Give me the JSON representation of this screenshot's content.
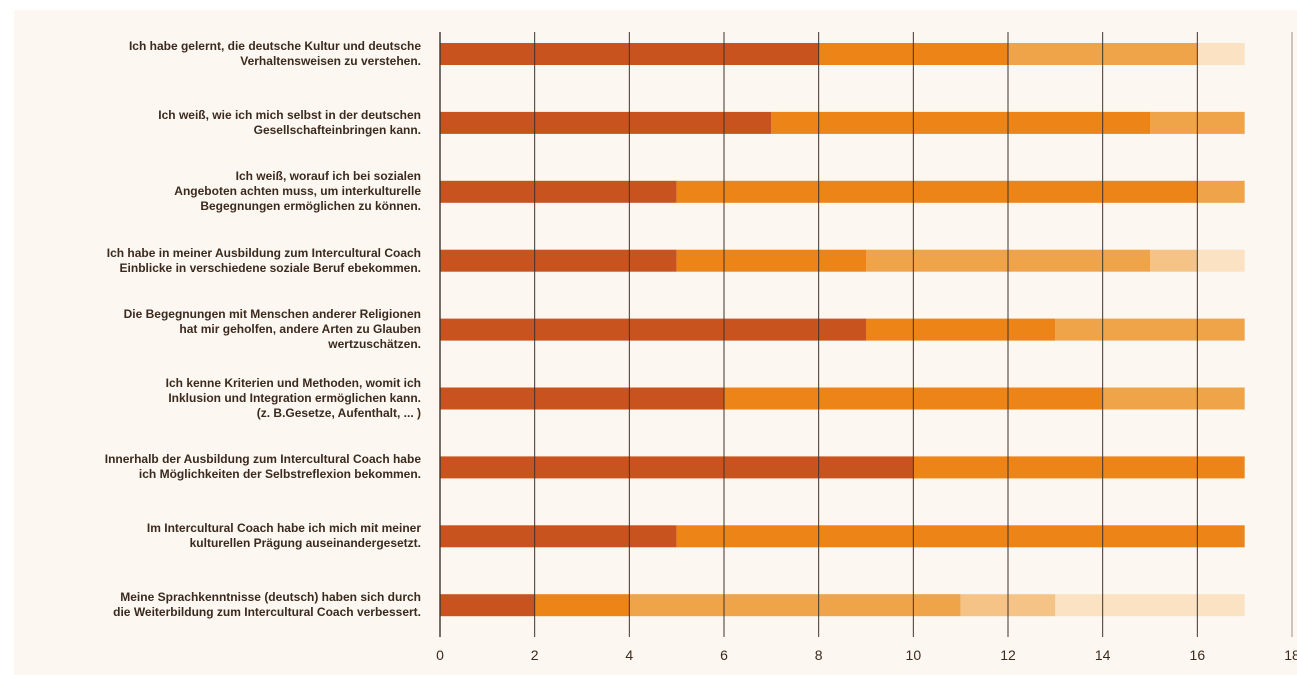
{
  "chart_data": {
    "type": "bar",
    "orientation": "horizontal",
    "stacked": true,
    "title": "",
    "xlabel": "",
    "ylabel": "",
    "xlim": [
      0,
      18
    ],
    "x_ticks": [
      "0",
      "2",
      "4",
      "6",
      "8",
      "10",
      "12",
      "14",
      "16",
      "18"
    ],
    "grid": true,
    "legend": "none",
    "categories": [
      "Ich habe gelernt, die deutsche Kultur und deutsche\nVerhaltensweisen zu verstehen.",
      "Ich weiß, wie ich mich selbst in der deutschen\nGesellschafteinbringen kann.",
      "Ich weiß, worauf ich bei sozialen\nAngeboten achten muss, um interkulturelle\nBegegnungen ermöglichen zu können.",
      "Ich habe in meiner Ausbildung zum Intercultural Coach\nEinblicke in verschiedene soziale Beruf ebekommen.",
      "Die Begegnungen mit Menschen anderer Religionen\nhat mir geholfen, andere Arten zu Glauben\nwertzuschätzen.",
      "Ich kenne Kriterien und Methoden, womit ich\nInklusion und Integration ermöglichen kann.\n(z. B.Gesetze, Aufenthalt, ... )",
      "Innerhalb der Ausbildung zum Intercultural Coach habe\nich Möglichkeiten der Selbstreflexion bekommen.",
      "Im Intercultural Coach habe ich mich mit meiner\nkulturellen Prägung auseinandergesetzt.",
      "Meine Sprachkenntnisse (deutsch) haben sich durch\ndie Weiterbildung zum Intercultural Coach verbessert."
    ],
    "series": [
      {
        "color": "#c8531f",
        "values": [
          8,
          7,
          5,
          5,
          9,
          6,
          10,
          5,
          2
        ]
      },
      {
        "color": "#ec8418",
        "values": [
          4,
          8,
          11,
          4,
          4,
          8,
          7,
          12,
          2
        ]
      },
      {
        "color": "#f0a44a",
        "values": [
          4,
          2,
          1,
          6,
          4,
          3,
          0,
          0,
          7
        ]
      },
      {
        "color": "#f5c386",
        "values": [
          0,
          0,
          0,
          1,
          0,
          0,
          0,
          0,
          2
        ]
      },
      {
        "color": "#fae2c2",
        "values": [
          1,
          0,
          0,
          1,
          0,
          0,
          0,
          0,
          4
        ]
      }
    ]
  }
}
